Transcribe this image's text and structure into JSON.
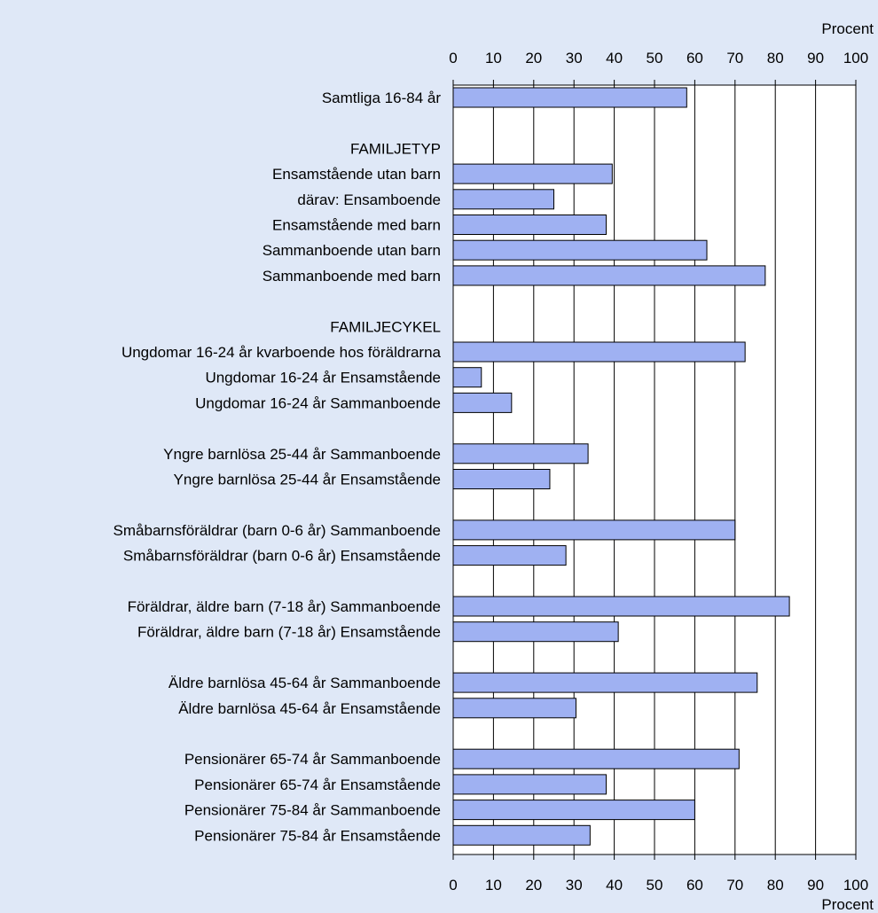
{
  "chart_data": {
    "type": "bar",
    "orientation": "horizontal",
    "xlabel": "Procent",
    "xlim": [
      0,
      100
    ],
    "xticks": [
      0,
      10,
      20,
      30,
      40,
      50,
      60,
      70,
      80,
      90,
      100
    ],
    "grid": "vertical",
    "bar_color": "#9fb1f2",
    "rows": [
      {
        "label": "Samtliga 16-84 år",
        "value": 58
      },
      {
        "label": "",
        "value": null
      },
      {
        "label": "FAMILJETYP",
        "value": null,
        "header": true
      },
      {
        "label": "Ensamstående utan barn",
        "value": 39.5
      },
      {
        "label": "därav: Ensamboende",
        "value": 25
      },
      {
        "label": "Ensamstående med barn",
        "value": 38
      },
      {
        "label": "Sammanboende utan barn",
        "value": 63
      },
      {
        "label": "Sammanboende med barn",
        "value": 77.5
      },
      {
        "label": "",
        "value": null
      },
      {
        "label": "FAMILJECYKEL",
        "value": null,
        "header": true
      },
      {
        "label": "Ungdomar 16-24 år kvarboende hos föräldrarna",
        "value": 72.5
      },
      {
        "label": "Ungdomar 16-24 år Ensamstående",
        "value": 7
      },
      {
        "label": "Ungdomar 16-24 år Sammanboende",
        "value": 14.5
      },
      {
        "label": "",
        "value": null
      },
      {
        "label": "Yngre barnlösa 25-44 år Sammanboende",
        "value": 33.5
      },
      {
        "label": "Yngre barnlösa 25-44 år Ensamstående",
        "value": 24
      },
      {
        "label": "",
        "value": null
      },
      {
        "label": "Småbarnsföräldrar (barn 0-6 år) Sammanboende",
        "value": 70
      },
      {
        "label": "Småbarnsföräldrar (barn 0-6 år) Ensamstående",
        "value": 28
      },
      {
        "label": "",
        "value": null
      },
      {
        "label": "Föräldrar, äldre barn (7-18 år) Sammanboende",
        "value": 83.5
      },
      {
        "label": "Föräldrar, äldre barn (7-18 år) Ensamstående",
        "value": 41
      },
      {
        "label": "",
        "value": null
      },
      {
        "label": "Äldre barnlösa 45-64 år Sammanboende",
        "value": 75.5
      },
      {
        "label": "Äldre barnlösa 45-64 år Ensamstående",
        "value": 30.5
      },
      {
        "label": "",
        "value": null
      },
      {
        "label": "Pensionärer 65-74 år Sammanboende",
        "value": 71
      },
      {
        "label": "Pensionärer 65-74 år Ensamstående",
        "value": 38
      },
      {
        "label": "Pensionärer 75-84 år Sammanboende",
        "value": 60
      },
      {
        "label": "Pensionärer 75-84 år Ensamstående",
        "value": 34
      }
    ]
  }
}
